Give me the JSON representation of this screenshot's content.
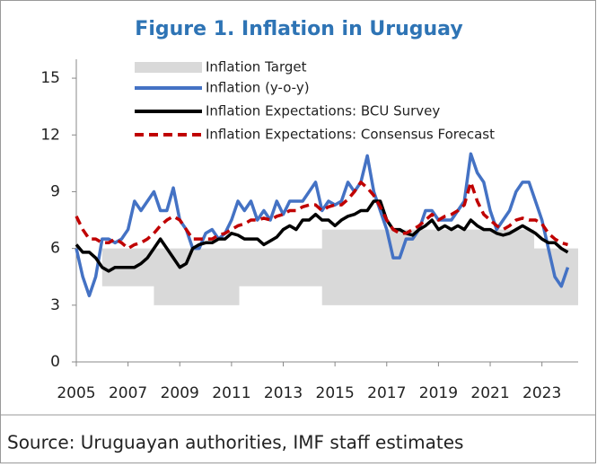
{
  "chart_data": {
    "type": "line",
    "title": "Figure 1. Inflation in Uruguay",
    "source": "Source: Uruguayan authorities, IMF staff estimates",
    "xlim": [
      2005,
      2024.4
    ],
    "ylim": [
      0,
      16
    ],
    "xticks": [
      2005,
      2007,
      2009,
      2011,
      2013,
      2015,
      2017,
      2019,
      2021,
      2023
    ],
    "yticks": [
      0,
      3,
      6,
      9,
      12,
      15
    ],
    "band": {
      "name": "Inflation Target",
      "color": "#d9d9d9",
      "x": [
        2006,
        2008,
        2008,
        2011.3,
        2011.3,
        2014.5,
        2014.5,
        2022.7,
        2022.7,
        2024.4
      ],
      "low": [
        4,
        4,
        3,
        3,
        4,
        4,
        3,
        3,
        3,
        3
      ],
      "high": [
        6,
        6,
        6,
        6,
        6,
        6,
        7,
        7,
        6,
        6
      ]
    },
    "x": [
      2005,
      2005.25,
      2005.5,
      2005.75,
      2006,
      2006.25,
      2006.5,
      2006.75,
      2007,
      2007.25,
      2007.5,
      2007.75,
      2008,
      2008.25,
      2008.5,
      2008.75,
      2009,
      2009.25,
      2009.5,
      2009.75,
      2010,
      2010.25,
      2010.5,
      2010.75,
      2011,
      2011.25,
      2011.5,
      2011.75,
      2012,
      2012.25,
      2012.5,
      2012.75,
      2013,
      2013.25,
      2013.5,
      2013.75,
      2014,
      2014.25,
      2014.5,
      2014.75,
      2015,
      2015.25,
      2015.5,
      2015.75,
      2016,
      2016.25,
      2016.5,
      2016.75,
      2017,
      2017.25,
      2017.5,
      2017.75,
      2018,
      2018.25,
      2018.5,
      2018.75,
      2019,
      2019.25,
      2019.5,
      2019.75,
      2020,
      2020.25,
      2020.5,
      2020.75,
      2021,
      2021.25,
      2021.5,
      2021.75,
      2022,
      2022.25,
      2022.5,
      2022.75,
      2023,
      2023.25,
      2023.5,
      2023.75,
      2024
    ],
    "series": [
      {
        "name": "Inflation (y-o-y)",
        "color": "#4472c4",
        "style": "solid",
        "values": [
          6.0,
          4.5,
          3.5,
          4.5,
          6.5,
          6.5,
          6.3,
          6.5,
          7.0,
          8.5,
          8.0,
          8.5,
          9.0,
          8.0,
          8.0,
          9.2,
          7.5,
          7.0,
          6.0,
          6.0,
          6.8,
          7.0,
          6.5,
          6.8,
          7.5,
          8.5,
          8.0,
          8.5,
          7.5,
          8.0,
          7.5,
          8.5,
          7.8,
          8.5,
          8.5,
          8.5,
          9.0,
          9.5,
          8.0,
          8.5,
          8.3,
          8.5,
          9.5,
          9.0,
          9.5,
          10.9,
          9.0,
          8.0,
          7.0,
          5.5,
          5.5,
          6.5,
          6.5,
          7.0,
          8.0,
          8.0,
          7.5,
          7.5,
          7.5,
          8.0,
          8.5,
          11.0,
          10.0,
          9.5,
          8.0,
          7.0,
          7.5,
          8.0,
          9.0,
          9.5,
          9.5,
          8.5,
          7.5,
          6.0,
          4.5,
          4.0,
          5.0
        ]
      },
      {
        "name": "Inflation Expectations: BCU Survey",
        "color": "#000000",
        "style": "solid",
        "values": [
          6.2,
          5.8,
          5.8,
          5.5,
          5.0,
          4.8,
          5.0,
          5.0,
          5.0,
          5.0,
          5.2,
          5.5,
          6.0,
          6.5,
          6.0,
          5.5,
          5.0,
          5.2,
          6.0,
          6.2,
          6.3,
          6.3,
          6.5,
          6.5,
          6.8,
          6.7,
          6.5,
          6.5,
          6.5,
          6.2,
          6.4,
          6.6,
          7.0,
          7.2,
          7.0,
          7.5,
          7.5,
          7.8,
          7.5,
          7.5,
          7.2,
          7.5,
          7.7,
          7.8,
          8.0,
          8.0,
          8.5,
          8.5,
          7.5,
          7.0,
          7.0,
          6.8,
          6.7,
          7.0,
          7.2,
          7.5,
          7.0,
          7.2,
          7.0,
          7.2,
          7.0,
          7.5,
          7.2,
          7.0,
          7.0,
          6.8,
          6.7,
          6.8,
          7.0,
          7.2,
          7.0,
          6.8,
          6.5,
          6.3,
          6.3,
          6.0,
          5.8
        ]
      },
      {
        "name": "Inflation Expectations: Consensus Forecast",
        "color": "#c00000",
        "style": "dashed",
        "values": [
          7.7,
          7.0,
          6.5,
          6.5,
          6.3,
          6.3,
          6.5,
          6.3,
          6.0,
          6.2,
          6.3,
          6.5,
          6.8,
          7.2,
          7.5,
          7.7,
          7.5,
          7.0,
          6.5,
          6.5,
          6.5,
          6.5,
          6.7,
          6.8,
          7.0,
          7.2,
          7.3,
          7.5,
          7.5,
          7.6,
          7.5,
          7.7,
          7.8,
          8.0,
          8.0,
          8.2,
          8.3,
          8.3,
          8.0,
          8.2,
          8.3,
          8.3,
          8.6,
          9.0,
          9.5,
          9.2,
          8.8,
          8.2,
          7.5,
          7.0,
          6.8,
          6.8,
          7.0,
          7.2,
          7.5,
          7.8,
          7.5,
          7.7,
          7.8,
          8.0,
          8.3,
          9.5,
          8.5,
          7.8,
          7.5,
          7.2,
          7.0,
          7.2,
          7.5,
          7.6,
          7.5,
          7.5,
          7.3,
          6.8,
          6.5,
          6.3,
          6.2
        ]
      }
    ]
  }
}
